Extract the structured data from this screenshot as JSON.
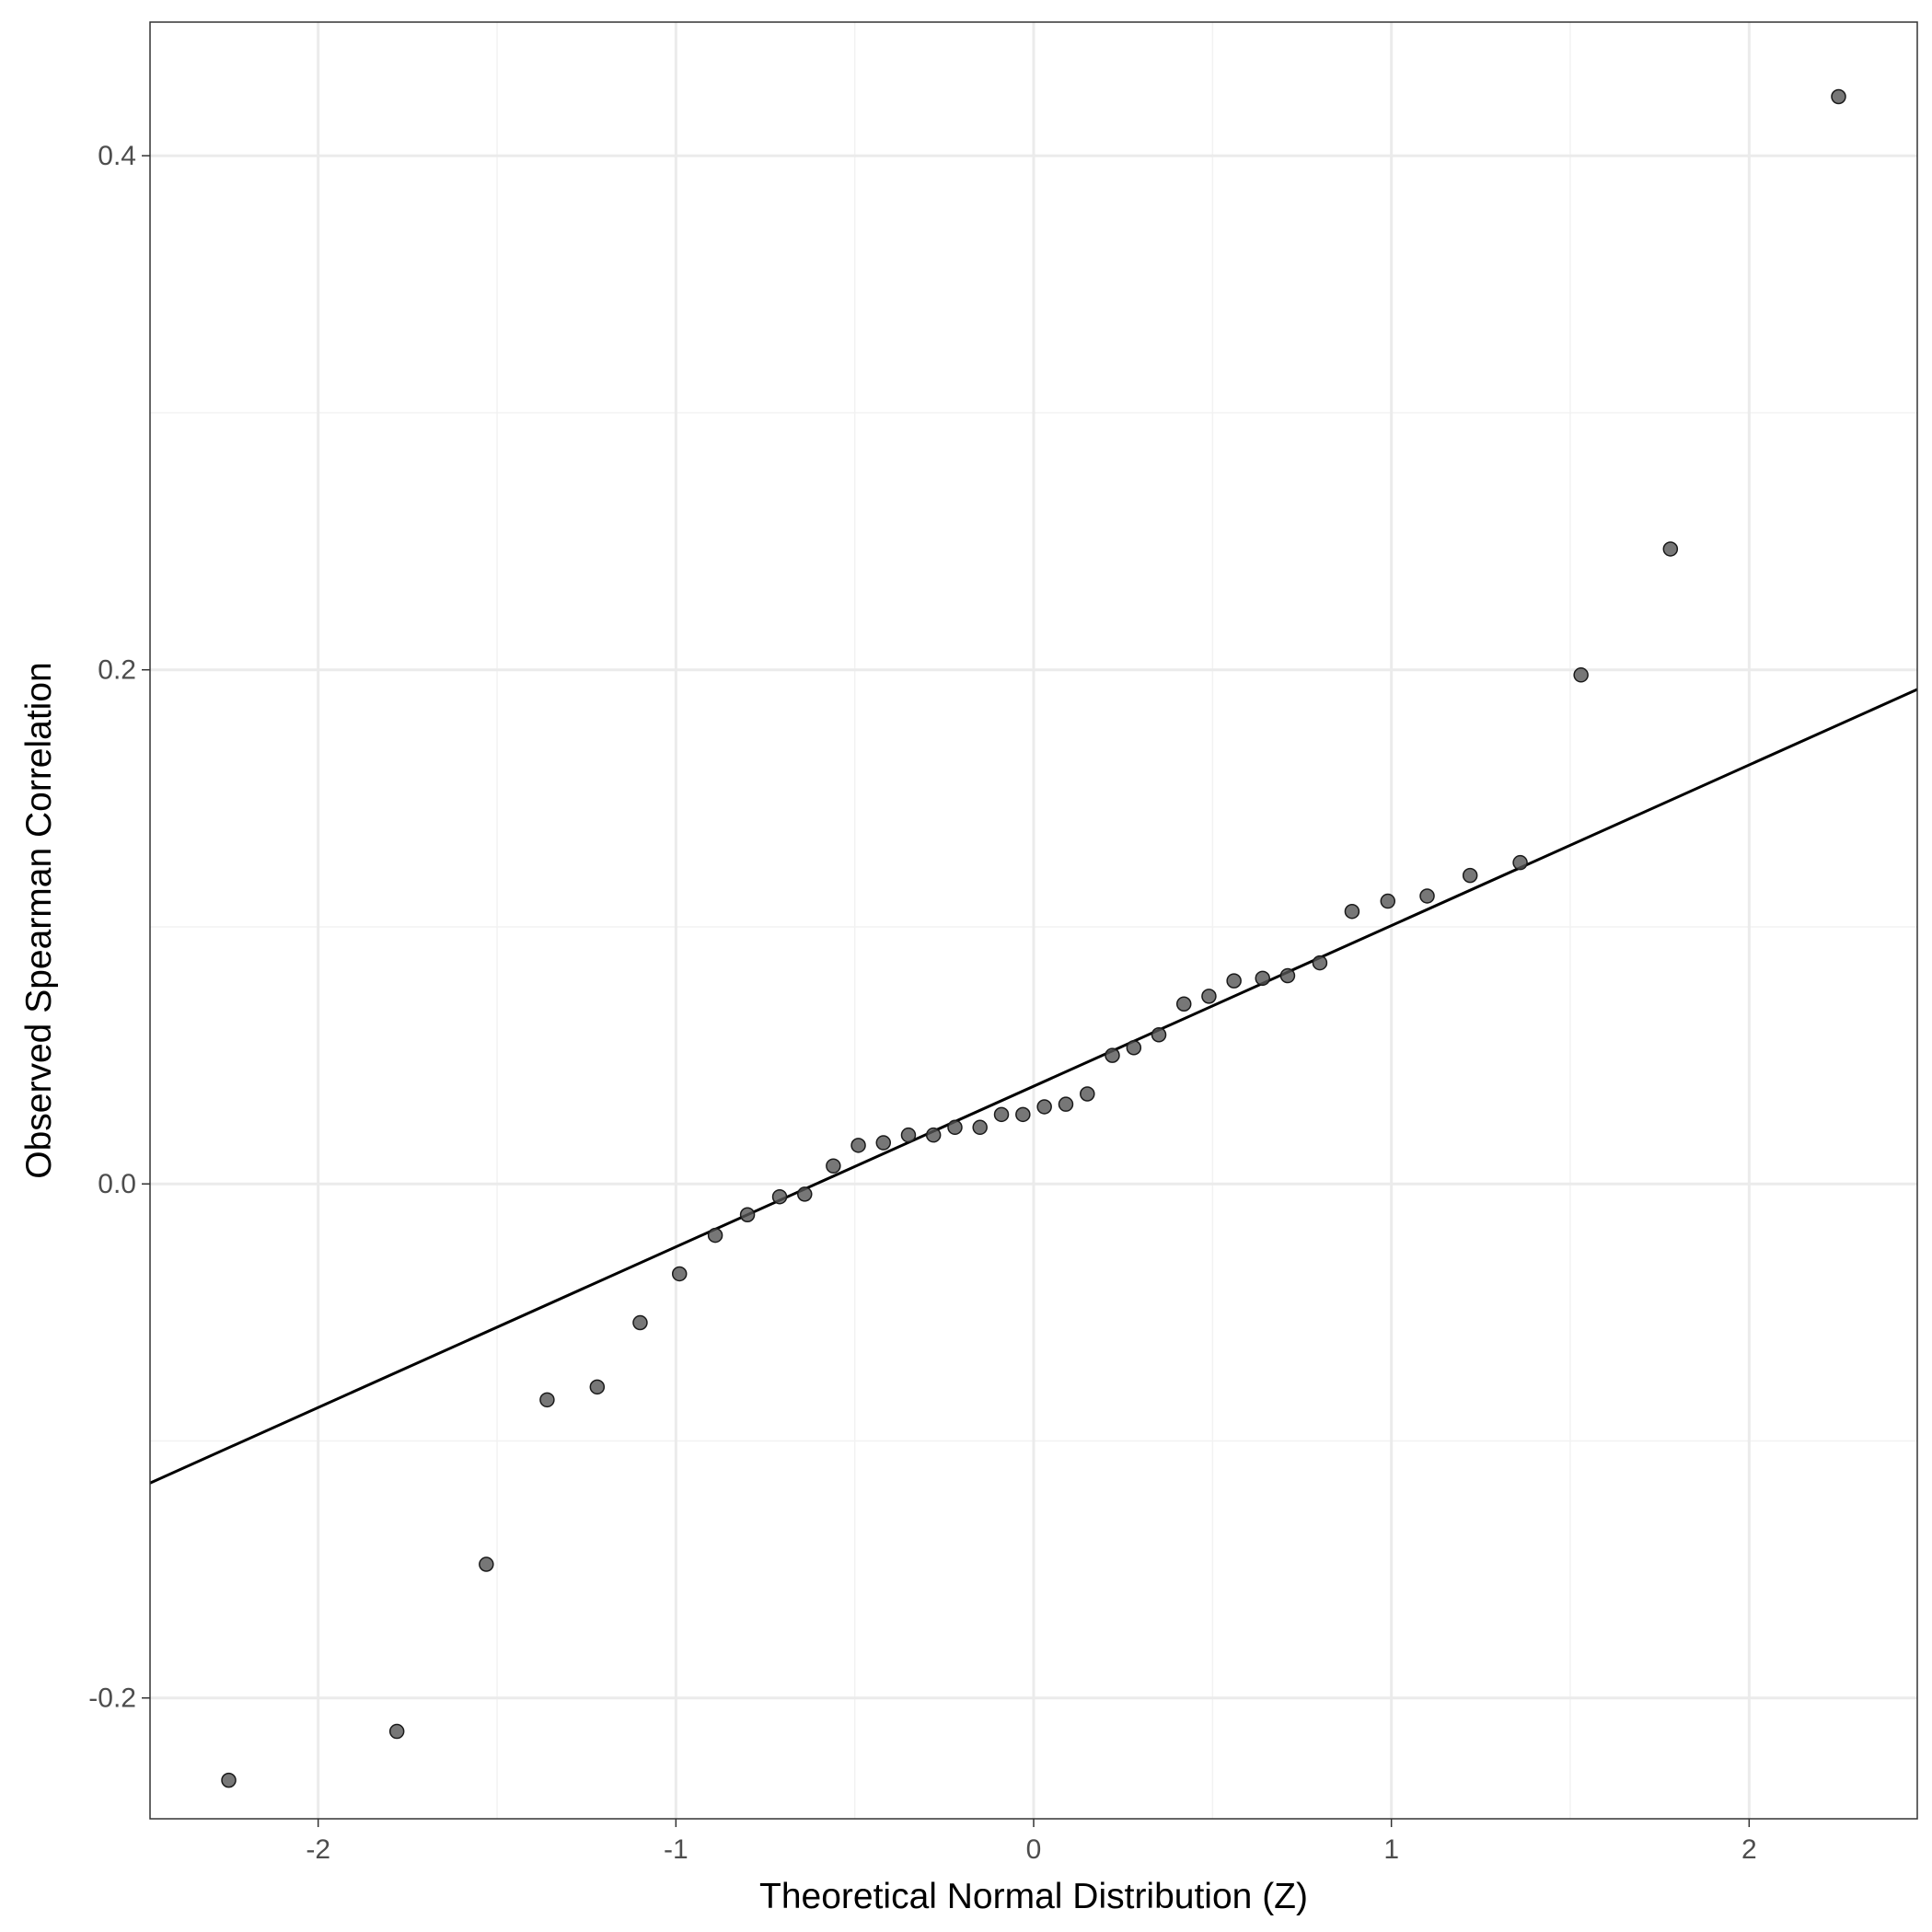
{
  "chart_data": {
    "type": "scatter",
    "title": "",
    "xlabel": "Theoretical Normal Distribution (Z)",
    "ylabel": "Observed Spearman Correlation",
    "xlim": [
      -2.47,
      2.47
    ],
    "ylim": [
      -0.247,
      0.452
    ],
    "x_ticks": [
      -2,
      -1,
      0,
      1,
      2
    ],
    "x_tick_labels": [
      "-2",
      "-1",
      "0",
      "1",
      "2"
    ],
    "y_ticks": [
      -0.2,
      0.0,
      0.2,
      0.4
    ],
    "y_tick_labels": [
      "-0.2",
      "0.0",
      "0.2",
      "0.4"
    ],
    "grid": true,
    "points": {
      "x": [
        -2.25,
        -1.78,
        -1.53,
        -1.36,
        -1.22,
        -1.1,
        -0.99,
        -0.89,
        -0.8,
        -0.71,
        -0.64,
        -0.56,
        -0.49,
        -0.42,
        -0.35,
        -0.28,
        -0.22,
        -0.15,
        -0.09,
        -0.03,
        0.03,
        0.09,
        0.15,
        0.22,
        0.28,
        0.35,
        0.42,
        0.49,
        0.56,
        0.64,
        0.71,
        0.8,
        0.89,
        0.99,
        1.1,
        1.22,
        1.36,
        1.53,
        1.78,
        2.25
      ],
      "y": [
        -0.232,
        -0.213,
        -0.148,
        -0.084,
        -0.079,
        -0.054,
        -0.035,
        -0.02,
        -0.012,
        -0.005,
        -0.004,
        0.007,
        0.015,
        0.016,
        0.019,
        0.019,
        0.022,
        0.022,
        0.027,
        0.027,
        0.03,
        0.031,
        0.035,
        0.05,
        0.053,
        0.058,
        0.07,
        0.073,
        0.079,
        0.08,
        0.081,
        0.086,
        0.106,
        0.11,
        0.112,
        0.12,
        0.125,
        0.198,
        0.247,
        0.423
      ],
      "color": "#555555"
    },
    "reference_line": {
      "type": "line",
      "intercept": 0.038,
      "slope": 0.0625,
      "color": "#000000"
    }
  }
}
